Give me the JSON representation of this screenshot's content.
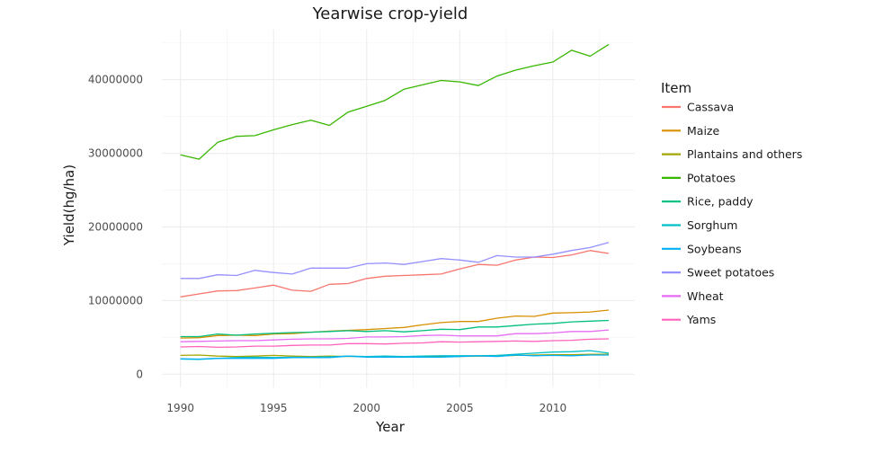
{
  "chart_data": {
    "type": "line",
    "title": "Yearwise crop-yield",
    "xlabel": "Year",
    "ylabel": "Yield(hg/ha)",
    "x": [
      1990,
      1991,
      1992,
      1993,
      1994,
      1995,
      1996,
      1997,
      1998,
      1999,
      2000,
      2001,
      2002,
      2003,
      2004,
      2005,
      2006,
      2007,
      2008,
      2009,
      2010,
      2011,
      2012,
      2013
    ],
    "xlim": [
      1989,
      2014.4
    ],
    "ylim": [
      -1800000,
      46800000
    ],
    "x_ticks": [
      1990,
      1995,
      2000,
      2005,
      2010
    ],
    "x_tick_labels": [
      "1990",
      "1995",
      "2000",
      "2005",
      "2010"
    ],
    "y_ticks": [
      0,
      10000000,
      20000000,
      30000000,
      40000000
    ],
    "y_tick_labels": [
      "0",
      "10000000",
      "20000000",
      "30000000",
      "40000000"
    ],
    "grid": true,
    "legend_position": "right",
    "legend_title": "Item",
    "series": [
      {
        "name": "Cassava",
        "color": "#F8766D",
        "values": [
          10500000,
          10900000,
          11300000,
          11350000,
          11700000,
          12100000,
          11400000,
          11250000,
          12200000,
          12300000,
          13000000,
          13300000,
          13400000,
          13500000,
          13600000,
          14300000,
          14900000,
          14800000,
          15500000,
          15900000,
          15850000,
          16200000,
          16800000,
          16400000
        ]
      },
      {
        "name": "Maize",
        "color": "#D89000",
        "values": [
          4900000,
          4950000,
          5250000,
          5300000,
          5250000,
          5450000,
          5500000,
          5700000,
          5850000,
          5950000,
          6050000,
          6200000,
          6350000,
          6700000,
          7000000,
          7150000,
          7150000,
          7600000,
          7900000,
          7850000,
          8300000,
          8350000,
          8450000,
          8700000
        ]
      },
      {
        "name": "Plantains and others",
        "color": "#A3A500",
        "values": [
          2550000,
          2600000,
          2450000,
          2400000,
          2450000,
          2550000,
          2450000,
          2400000,
          2450000,
          2400000,
          2400000,
          2350000,
          2350000,
          2400000,
          2400000,
          2400000,
          2450000,
          2450000,
          2550000,
          2600000,
          2650000,
          2650000,
          2700000,
          2700000
        ]
      },
      {
        "name": "Potatoes",
        "color": "#39B600",
        "values": [
          29800000,
          29200000,
          31500000,
          32300000,
          32400000,
          33200000,
          33900000,
          34500000,
          33800000,
          35600000,
          36400000,
          37200000,
          38700000,
          39300000,
          39900000,
          39700000,
          39200000,
          40500000,
          41300000,
          41900000,
          42400000,
          44000000,
          43200000,
          44800000
        ]
      },
      {
        "name": "Rice, paddy",
        "color": "#00BF7D",
        "values": [
          5100000,
          5100000,
          5450000,
          5300000,
          5450000,
          5550000,
          5650000,
          5700000,
          5800000,
          5900000,
          5800000,
          5900000,
          5750000,
          5900000,
          6100000,
          6050000,
          6400000,
          6400000,
          6600000,
          6800000,
          6900000,
          7100000,
          7200000,
          7300000
        ]
      },
      {
        "name": "Sorghum",
        "color": "#00BFC4",
        "values": [
          2050000,
          2000000,
          2150000,
          2250000,
          2300000,
          2250000,
          2300000,
          2300000,
          2350000,
          2450000,
          2400000,
          2450000,
          2400000,
          2450000,
          2500000,
          2500000,
          2500000,
          2550000,
          2700000,
          2850000,
          3000000,
          3050000,
          3200000,
          2850000
        ]
      },
      {
        "name": "Soybeans",
        "color": "#00B0F6",
        "values": [
          2100000,
          2050000,
          2150000,
          2150000,
          2150000,
          2150000,
          2250000,
          2250000,
          2250000,
          2450000,
          2300000,
          2300000,
          2300000,
          2300000,
          2300000,
          2400000,
          2500000,
          2400000,
          2600000,
          2500000,
          2550000,
          2500000,
          2600000,
          2600000
        ]
      },
      {
        "name": "Sweet potatoes",
        "color": "#9590FF",
        "values": [
          13000000,
          13000000,
          13500000,
          13400000,
          14100000,
          13800000,
          13600000,
          14400000,
          14400000,
          14400000,
          15000000,
          15100000,
          14900000,
          15300000,
          15700000,
          15500000,
          15200000,
          16100000,
          15900000,
          15900000,
          16300000,
          16800000,
          17200000,
          17900000
        ]
      },
      {
        "name": "Wheat",
        "color": "#E76BF3",
        "values": [
          4400000,
          4450000,
          4500000,
          4550000,
          4550000,
          4650000,
          4750000,
          4800000,
          4800000,
          4850000,
          5050000,
          5050000,
          5100000,
          5250000,
          5300000,
          5200000,
          5200000,
          5200000,
          5500000,
          5500000,
          5600000,
          5800000,
          5800000,
          6000000
        ]
      },
      {
        "name": "Yams",
        "color": "#FF62BC",
        "values": [
          3700000,
          3750000,
          3650000,
          3700000,
          3800000,
          3800000,
          3900000,
          3950000,
          3950000,
          4150000,
          4150000,
          4100000,
          4200000,
          4250000,
          4400000,
          4350000,
          4400000,
          4450000,
          4500000,
          4450000,
          4550000,
          4600000,
          4750000,
          4800000
        ]
      }
    ]
  }
}
